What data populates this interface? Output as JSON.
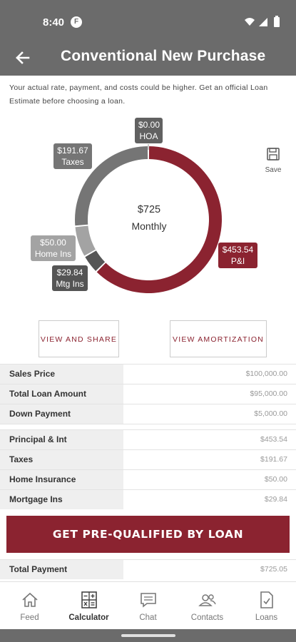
{
  "status": {
    "time": "8:40",
    "notif_glyph": "F"
  },
  "header": {
    "title": "Conventional New Purchase"
  },
  "disclaimer": "Your actual rate, payment, and costs could be higher. Get an official Loan Estimate before choosing a loan.",
  "chart_data": {
    "type": "pie",
    "center_amount": "$725",
    "center_label": "Monthly",
    "slices": [
      {
        "name": "P&I",
        "label": "$453.54",
        "value": 453.54,
        "color": "#8b2330"
      },
      {
        "name": "Mtg Ins",
        "label": "$29.84",
        "value": 29.84,
        "color": "#555555"
      },
      {
        "name": "Home Ins",
        "label": "$50.00",
        "value": 50.0,
        "color": "#a3a3a3"
      },
      {
        "name": "Taxes",
        "label": "$191.67",
        "value": 191.67,
        "color": "#757575"
      },
      {
        "name": "HOA",
        "label": "$0.00",
        "value": 0.0,
        "color": "#616161"
      }
    ]
  },
  "save_label": "Save",
  "buttons": {
    "share": "VIEW AND SHARE",
    "amortization": "VIEW AMORTIZATION"
  },
  "loan_rows": [
    {
      "label": "Sales Price",
      "value": "$100,000.00"
    },
    {
      "label": "Total Loan Amount",
      "value": "$95,000.00"
    },
    {
      "label": "Down Payment",
      "value": "$5,000.00"
    }
  ],
  "payment_rows": [
    {
      "label": "Principal & Int",
      "value": "$453.54"
    },
    {
      "label": "Taxes",
      "value": "$191.67"
    },
    {
      "label": "Home Insurance",
      "value": "$50.00"
    },
    {
      "label": "Mortgage Ins",
      "value": "$29.84"
    }
  ],
  "cta_label": "GET PRE-QUALIFIED BY LOAN",
  "total": {
    "label": "Total Payment",
    "value": "$725.05"
  },
  "nav": [
    {
      "label": "Feed",
      "icon": "home-icon",
      "active": false
    },
    {
      "label": "Calculator",
      "icon": "calculator-icon",
      "active": true
    },
    {
      "label": "Chat",
      "icon": "chat-icon",
      "active": false
    },
    {
      "label": "Contacts",
      "icon": "contacts-icon",
      "active": false
    },
    {
      "label": "Loans",
      "icon": "loans-icon",
      "active": false
    }
  ]
}
